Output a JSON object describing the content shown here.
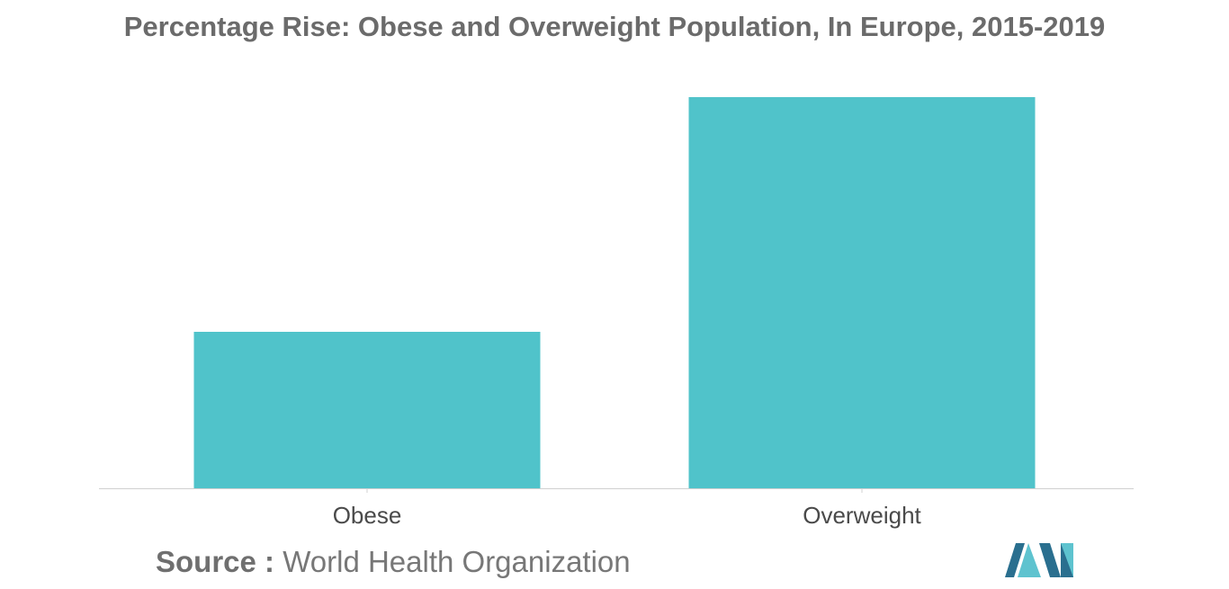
{
  "chart_data": {
    "type": "bar",
    "title": "Percentage Rise: Obese and Overweight Population, In Europe, 2015-2019",
    "categories": [
      "Obese",
      "Overweight"
    ],
    "values": [
      40,
      100
    ],
    "ylim": [
      0,
      100
    ],
    "xlabel": "",
    "ylabel": "",
    "grid": false,
    "legend": "none",
    "bar_color": "#50c3ca",
    "axis_color": "#d0d0d0",
    "label_color": "#4a4a4a"
  },
  "source": {
    "label": "Source :",
    "text": "World Health Organization"
  },
  "colors": {
    "title": "#6b6b6b",
    "logo_dark": "#2a6f8f",
    "logo_light": "#5ec3cf"
  }
}
